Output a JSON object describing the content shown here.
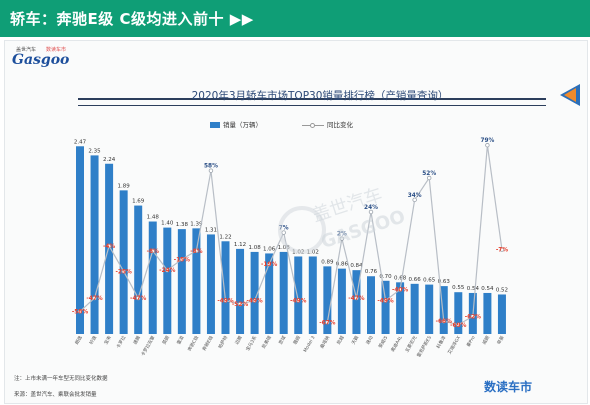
{
  "header": {
    "title": "轿车：奔驰E级 C级均进入前十 ▶▶"
  },
  "logo": {
    "small_left": "盖世汽车",
    "small_right": "数读车市",
    "main": "Gasgoo"
  },
  "colors": {
    "header_bg": "#0f9e76",
    "bar": "#2f7fc8",
    "line": "#b8bec6",
    "neg_label": "#e8412f",
    "pos_label": "#2b4f86",
    "banner_dark": "#2c3e5c",
    "banner_orange": "#f08a2a"
  },
  "notes": {
    "note1": "注：上市未满一年车型无同比变化数据",
    "note2": "来源：盖世汽车、乘联会批发销量"
  },
  "brand": "数读车市",
  "watermark": "盖世汽车 GASGOO",
  "chart_data": {
    "type": "bar",
    "title": "2020年3月轿车市场TOP30销量排行榜（产销量查询）",
    "legend_position": "top",
    "ylim": [
      0,
      2.6
    ],
    "categories": [
      "朗逸",
      "轩逸",
      "宝来",
      "卡罗拉",
      "速腾",
      "卡罗拉双擎",
      "英朗",
      "雷凌",
      "奔驰C级",
      "奔驰E级",
      "帕萨特",
      "迈腾",
      "宝马3系",
      "凯美瑞",
      "思域",
      "雅阁",
      "Model 3",
      "桑塔纳",
      "凯越",
      "天籁",
      "逸动",
      "荣威i5",
      "奥迪A4L",
      "五菱宏光",
      "雷克萨斯ES",
      "科鲁泽",
      "艾瑞泽GX",
      "秦Pro",
      "威朗",
      "帝豪"
    ],
    "series": [
      {
        "name": "销量（万辆）",
        "values": [
          2.47,
          2.35,
          2.24,
          1.89,
          1.69,
          1.48,
          1.4,
          1.38,
          1.39,
          1.31,
          1.22,
          1.12,
          1.08,
          1.06,
          1.08,
          1.02,
          1.02,
          0.89,
          0.86,
          0.84,
          0.76,
          0.7,
          0.68,
          0.66,
          0.65,
          0.63,
          0.55,
          0.54,
          0.54,
          0.52
        ]
      },
      {
        "name": "同比变化",
        "values": [
          -58,
          -47,
          -4,
          -25,
          -47,
          -8,
          -24,
          -15,
          -8,
          58,
          -49,
          -52,
          -49,
          -19,
          7,
          -49,
          null,
          -67,
          2,
          -47,
          24,
          -49,
          -40,
          34,
          52,
          -66,
          -69,
          -62,
          79,
          -7
        ]
      }
    ],
    "bar_labels": [
      "2.47",
      "2.35",
      "2.24",
      "1.89",
      "1.69",
      "1.48",
      "1.40",
      "1.38",
      "1.39",
      "1.31",
      "1.22",
      "1.12",
      "1.08",
      "1.06",
      "1.08",
      "1.02",
      "1.02",
      "0.89",
      "0.86",
      "0.84",
      "0.76",
      "0.70",
      "0.68",
      "0.66",
      "0.65",
      "0.63",
      "0.55",
      "0.54",
      "0.54",
      "0.52"
    ],
    "pct_labels": [
      "-58%",
      "-47%",
      "-4%",
      "-25%",
      "-47%",
      "-8%",
      "-24%",
      "-15%",
      "-8%",
      "58%",
      "-49%",
      "-52%",
      "-49%",
      "-19%",
      "7%",
      "-49%",
      "",
      "-67%",
      "2%",
      "-47%",
      "24%",
      "-49%",
      "-40%",
      "34%",
      "52%",
      "-66%",
      "-69%",
      "-62%",
      "79%",
      "-7%"
    ]
  }
}
